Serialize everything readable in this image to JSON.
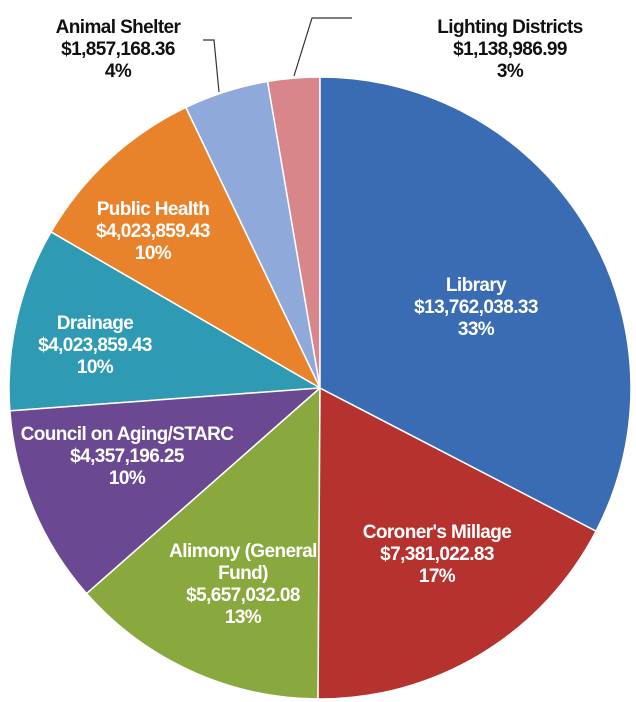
{
  "chart_data": {
    "type": "pie",
    "categories": [
      "Library",
      "Coroner's Millage",
      "Alimony (General Fund)",
      "Council on Aging/STARC",
      "Drainage",
      "Public Health",
      "Animal Shelter",
      "Lighting Districts"
    ],
    "values": [
      13762038.33,
      7381022.83,
      5657032.08,
      4357196.25,
      4023859.43,
      4023859.43,
      1857168.36,
      1138986.99
    ],
    "value_labels": [
      "$13,762,038.33",
      "$7,381,022.83",
      "$5,657,032.08",
      "$4,357,196.25",
      "$4,023,859.43",
      "$4,023,859.43",
      "$1,857,168.36",
      "$1,138,986.99"
    ],
    "percents": [
      33,
      17,
      13,
      10,
      10,
      10,
      4,
      3
    ],
    "percent_labels": [
      "33%",
      "17%",
      "13%",
      "10%",
      "10%",
      "10%",
      "4%",
      "3%"
    ],
    "colors": [
      "#3a6cb3",
      "#b5322f",
      "#89a83d",
      "#6a4992",
      "#2e9ab3",
      "#e8832b",
      "#8fa9da",
      "#d8868a"
    ]
  }
}
